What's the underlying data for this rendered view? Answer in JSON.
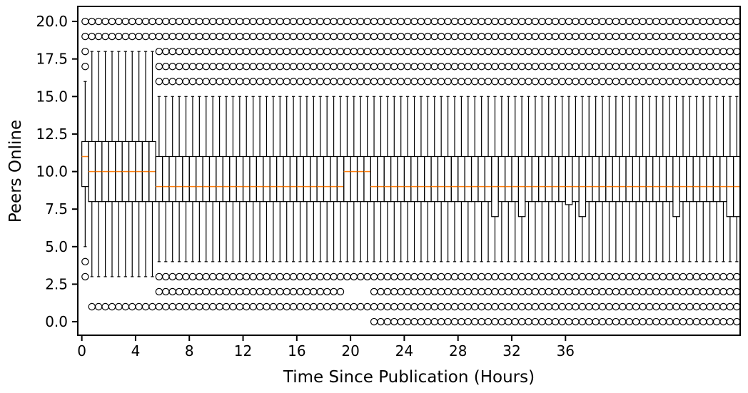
{
  "chart_data": {
    "type": "boxplot",
    "title": "",
    "xlabel": "Time Since Publication (Hours)",
    "ylabel": "Peers Online",
    "xlim": [
      -0.3,
      49
    ],
    "ylim": [
      -0.9,
      21
    ],
    "x_ticks": [
      0,
      4,
      8,
      12,
      16,
      20,
      24,
      28,
      32,
      36
    ],
    "x_tick_labels": [
      "0",
      "4",
      "8",
      "12",
      "16",
      "20",
      "24",
      "28",
      "32",
      "36"
    ],
    "y_ticks": [
      0,
      2.5,
      5,
      7.5,
      10,
      12.5,
      15,
      17.5,
      20
    ],
    "y_tick_labels": [
      "0.0",
      "2.5",
      "5.0",
      "7.5",
      "10.0",
      "12.5",
      "15.0",
      "17.5",
      "20.0"
    ],
    "grid": false,
    "median_color": "#ff7f0e",
    "box_color": "#000000",
    "outlier_marker": "open-circle",
    "bin_width_hours": 0.5,
    "box_groups": [
      {
        "x_start": 0.0,
        "x_end": 0.5,
        "q1": 9,
        "median": 11,
        "q3": 12,
        "whisker_low": 5,
        "whisker_high": 16,
        "outliers": [
          3,
          4,
          17,
          18,
          19,
          20
        ]
      },
      {
        "x_start": 0.5,
        "x_end": 5.5,
        "q1": 8,
        "median": 10,
        "q3": 12,
        "whisker_low": 3,
        "whisker_high": 18,
        "outliers": [
          1,
          19,
          20
        ]
      },
      {
        "x_start": 5.5,
        "x_end": 19.5,
        "q1": 8,
        "median": 9,
        "q3": 11,
        "whisker_low": 4,
        "whisker_high": 15,
        "outliers": [
          1,
          2,
          3,
          16,
          17,
          18,
          19,
          20
        ]
      },
      {
        "x_start": 19.5,
        "x_end": 21.5,
        "q1": 8,
        "median": 10,
        "q3": 11,
        "whisker_low": 4,
        "whisker_high": 15,
        "outliers": [
          1,
          3,
          16,
          17,
          18,
          19,
          20
        ]
      },
      {
        "x_start": 21.5,
        "x_end": 49.0,
        "q1": 8,
        "median": 9,
        "q3": 11,
        "whisker_low": 4,
        "whisker_high": 15,
        "outliers": [
          0,
          1,
          2,
          3,
          16,
          17,
          18,
          19,
          20
        ]
      }
    ],
    "low_q1_bins": [
      {
        "x": 30.75,
        "q1": 7
      },
      {
        "x": 32.75,
        "q1": 7
      },
      {
        "x": 36.25,
        "q1": 7.8
      },
      {
        "x": 37.25,
        "q1": 7
      },
      {
        "x": 44.25,
        "q1": 7
      },
      {
        "x": 48.25,
        "q1": 7
      },
      {
        "x": 48.75,
        "q1": 7
      }
    ]
  }
}
